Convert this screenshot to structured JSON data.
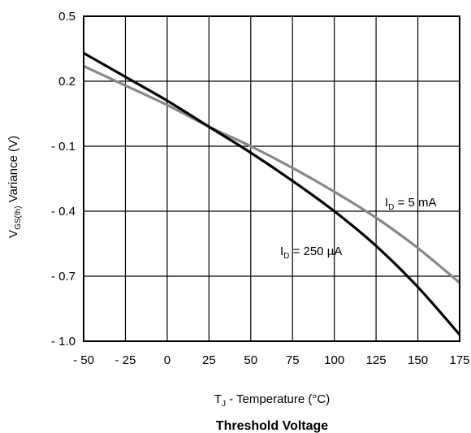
{
  "chart_data": {
    "type": "line",
    "title": "Threshold Voltage",
    "xlabel": {
      "prefix": "T",
      "sub": "J",
      "suffix": " - Temperature (°C)"
    },
    "ylabel": {
      "prefix": "V",
      "sub": "GS(th)",
      "suffix": " Variance (V)"
    },
    "xlim": [
      -50,
      175
    ],
    "ylim": [
      -1.0,
      0.5
    ],
    "x_ticks": [
      -50,
      -25,
      0,
      25,
      50,
      75,
      100,
      125,
      150,
      175
    ],
    "x_tick_labels": [
      "- 50",
      "- 25",
      "0",
      "25",
      "50",
      "75",
      "100",
      "125",
      "150",
      "175"
    ],
    "y_ticks": [
      0.5,
      0.2,
      -0.1,
      -0.4,
      -0.7,
      -1.0
    ],
    "y_tick_labels": [
      "0.5",
      "0.2",
      "- 0.1",
      "- 0.4",
      "- 0.7",
      "- 1.0"
    ],
    "grid": true,
    "series": [
      {
        "name_prefix": "I",
        "name_sub": "D",
        "name_suffix": " = 250 µA",
        "color": "#000000",
        "x": [
          -50,
          -25,
          0,
          25,
          50,
          75,
          100,
          125,
          150,
          175
        ],
        "y": [
          0.33,
          0.22,
          0.11,
          -0.01,
          -0.13,
          -0.26,
          -0.4,
          -0.56,
          -0.75,
          -0.97
        ]
      },
      {
        "name_prefix": "I",
        "name_sub": "D",
        "name_suffix": " = 5 mA",
        "color": "#888888",
        "x": [
          -50,
          -25,
          0,
          25,
          50,
          75,
          100,
          125,
          150,
          175
        ],
        "y": [
          0.27,
          0.18,
          0.09,
          -0.01,
          -0.1,
          -0.2,
          -0.31,
          -0.43,
          -0.57,
          -0.73
        ]
      }
    ]
  }
}
